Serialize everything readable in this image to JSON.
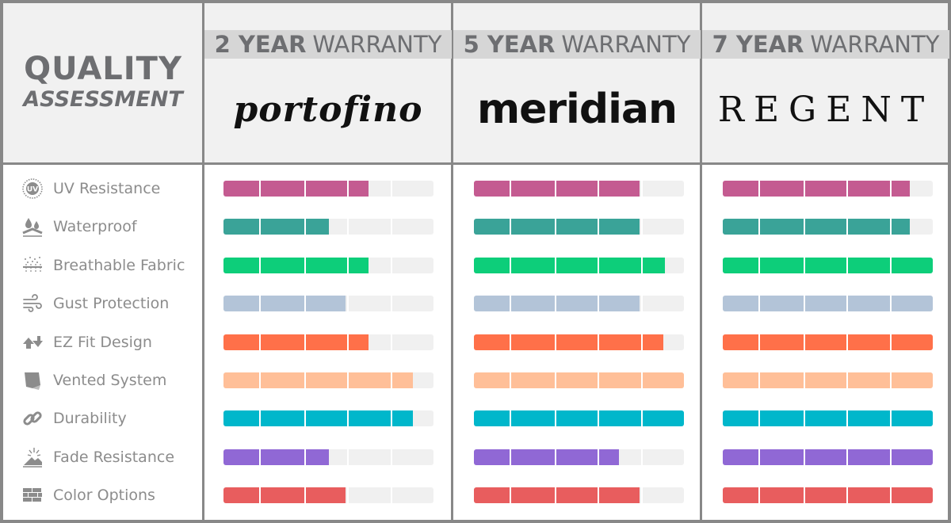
{
  "title": {
    "line1": "QUALITY",
    "line2": "ASSESSMENT"
  },
  "products": [
    {
      "warranty_bold": "2 YEAR",
      "warranty_rest": "WARRANTY",
      "brand": "portofino"
    },
    {
      "warranty_bold": "5 YEAR",
      "warranty_rest": "WARRANTY",
      "brand": "meridian"
    },
    {
      "warranty_bold": "7 YEAR",
      "warranty_rest": "WARRANTY",
      "brand": "REGENT"
    }
  ],
  "features": [
    {
      "label": "UV Resistance",
      "icon": "uv-sun-icon",
      "color": "#c45b91",
      "levels": [
        0.69,
        0.79,
        0.89
      ]
    },
    {
      "label": "Waterproof",
      "icon": "water-drops-icon",
      "color": "#3aa398",
      "levels": [
        0.5,
        0.79,
        0.89
      ]
    },
    {
      "label": "Breathable Fabric",
      "icon": "breathable-dots-icon",
      "color": "#0dce7a",
      "levels": [
        0.69,
        0.91,
        1.0
      ]
    },
    {
      "label": "Gust Protection",
      "icon": "wind-gust-icon",
      "color": "#b3c4d8",
      "levels": [
        0.58,
        0.79,
        1.0
      ]
    },
    {
      "label": "EZ Fit Design",
      "icon": "fit-arrows-icon",
      "color": "#ff7049",
      "levels": [
        0.69,
        0.9,
        1.0
      ]
    },
    {
      "label": "Vented System",
      "icon": "vent-tarp-icon",
      "color": "#ffbf98",
      "levels": [
        0.9,
        1.0,
        1.0
      ]
    },
    {
      "label": "Durability",
      "icon": "chain-link-icon",
      "color": "#00b7cb",
      "levels": [
        0.9,
        1.0,
        1.0
      ]
    },
    {
      "label": "Fade Resistance",
      "icon": "fade-sparkle-icon",
      "color": "#9068d5",
      "levels": [
        0.5,
        0.69,
        1.0
      ]
    },
    {
      "label": "Color Options",
      "icon": "color-bricks-icon",
      "color": "#e85d5e",
      "levels": [
        0.58,
        0.79,
        1.0
      ]
    }
  ]
}
